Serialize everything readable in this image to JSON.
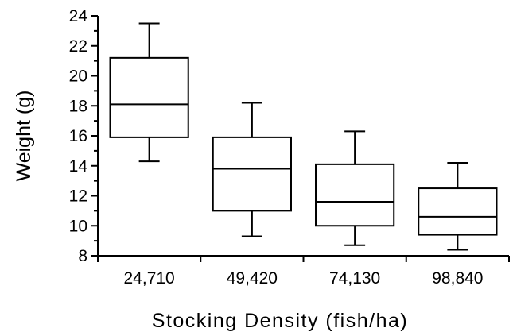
{
  "chart_data": {
    "type": "box",
    "title": "",
    "xlabel": "Stocking Density (fish/ha)",
    "ylabel": "Weight (g)",
    "ylim": [
      8,
      24
    ],
    "yticks": [
      "8",
      "10",
      "12",
      "14",
      "16",
      "18",
      "20",
      "22",
      "24"
    ],
    "categories": [
      "24,710",
      "49,420",
      "74,130",
      "98,840"
    ],
    "boxes": [
      {
        "category": "24,710",
        "whisker_low": 14.3,
        "q1": 15.9,
        "median": 18.1,
        "q3": 21.2,
        "whisker_high": 23.5
      },
      {
        "category": "49,420",
        "whisker_low": 9.3,
        "q1": 11.0,
        "median": 13.8,
        "q3": 15.9,
        "whisker_high": 18.2
      },
      {
        "category": "74,130",
        "whisker_low": 8.7,
        "q1": 10.0,
        "median": 11.6,
        "q3": 14.1,
        "whisker_high": 16.3
      },
      {
        "category": "98,840",
        "whisker_low": 8.4,
        "q1": 9.4,
        "median": 10.6,
        "q3": 12.5,
        "whisker_high": 14.2
      }
    ],
    "grid": false,
    "legend": "none"
  }
}
